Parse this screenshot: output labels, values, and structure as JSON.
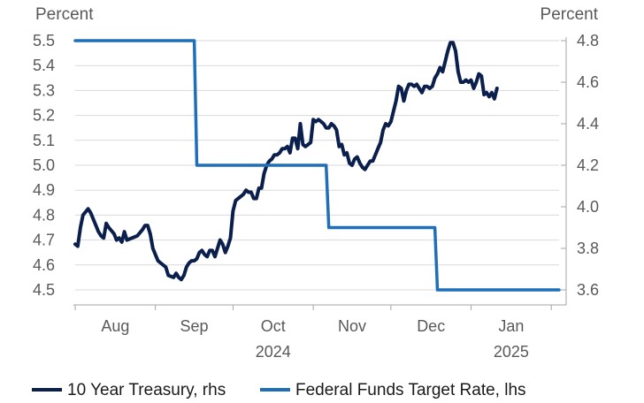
{
  "chart_data": {
    "type": "line",
    "left_axis": {
      "unit_label": "Percent",
      "ylim": [
        4.5,
        5.5
      ],
      "ticks": [
        "5.5",
        "5.4",
        "5.3",
        "5.2",
        "5.1",
        "5.0",
        "4.9",
        "4.8",
        "4.7",
        "4.6",
        "4.5"
      ]
    },
    "right_axis": {
      "unit_label": "Percent",
      "ylim": [
        3.6,
        4.8
      ],
      "ticks": [
        "4.8",
        "4.6",
        "4.4",
        "4.2",
        "4.0",
        "3.8",
        "3.6"
      ]
    },
    "x_axis": {
      "month_labels": [
        "Aug",
        "Sep",
        "Oct",
        "Nov",
        "Dec",
        "Jan"
      ],
      "year_labels": [
        "2024",
        "2025"
      ],
      "xlim_days": [
        0,
        187
      ]
    },
    "series": [
      {
        "name": "10 Year Treasury, rhs",
        "axis": "right",
        "color": "#0b1f4d",
        "points": [
          [
            0,
            3.82
          ],
          [
            1,
            3.81
          ],
          [
            2,
            3.9
          ],
          [
            3,
            3.96
          ],
          [
            5,
            3.99
          ],
          [
            6,
            3.97
          ],
          [
            8,
            3.91
          ],
          [
            9,
            3.88
          ],
          [
            10,
            3.86
          ],
          [
            11,
            3.85
          ],
          [
            12,
            3.92
          ],
          [
            13,
            3.9
          ],
          [
            15,
            3.87
          ],
          [
            16,
            3.84
          ],
          [
            17,
            3.85
          ],
          [
            18,
            3.83
          ],
          [
            19,
            3.88
          ],
          [
            20,
            3.84
          ],
          [
            22,
            3.85
          ],
          [
            24,
            3.86
          ],
          [
            26,
            3.89
          ],
          [
            27,
            3.91
          ],
          [
            28,
            3.91
          ],
          [
            29,
            3.87
          ],
          [
            30,
            3.8
          ],
          [
            31,
            3.77
          ],
          [
            32,
            3.74
          ],
          [
            33,
            3.73
          ],
          [
            35,
            3.71
          ],
          [
            36,
            3.67
          ],
          [
            38,
            3.66
          ],
          [
            39,
            3.68
          ],
          [
            40,
            3.66
          ],
          [
            41,
            3.65
          ],
          [
            42,
            3.67
          ],
          [
            43,
            3.71
          ],
          [
            44,
            3.73
          ],
          [
            45,
            3.74
          ],
          [
            46,
            3.74
          ],
          [
            47,
            3.75
          ],
          [
            48,
            3.78
          ],
          [
            49,
            3.79
          ],
          [
            50,
            3.77
          ],
          [
            51,
            3.76
          ],
          [
            52,
            3.79
          ],
          [
            53,
            3.79
          ],
          [
            54,
            3.76
          ],
          [
            55,
            3.8
          ],
          [
            56,
            3.84
          ],
          [
            57,
            3.82
          ],
          [
            58,
            3.78
          ],
          [
            59,
            3.81
          ],
          [
            60,
            3.85
          ],
          [
            61,
            3.98
          ],
          [
            62,
            4.03
          ],
          [
            63,
            4.04
          ],
          [
            65,
            4.06
          ],
          [
            66,
            4.08
          ],
          [
            67,
            4.07
          ],
          [
            68,
            4.07
          ],
          [
            69,
            4.04
          ],
          [
            70,
            4.04
          ],
          [
            71,
            4.09
          ],
          [
            72,
            4.09
          ],
          [
            73,
            4.16
          ],
          [
            74,
            4.2
          ],
          [
            75,
            4.22
          ],
          [
            76,
            4.23
          ],
          [
            77,
            4.25
          ],
          [
            78,
            4.25
          ],
          [
            79,
            4.26
          ],
          [
            80,
            4.28
          ],
          [
            81,
            4.28
          ],
          [
            82,
            4.29
          ],
          [
            83,
            4.26
          ],
          [
            84,
            4.33
          ],
          [
            85,
            4.33
          ],
          [
            86,
            4.28
          ],
          [
            87,
            4.4
          ],
          [
            88,
            4.3
          ],
          [
            89,
            4.29
          ],
          [
            90,
            4.3
          ],
          [
            91,
            4.31
          ],
          [
            92,
            4.42
          ],
          [
            93,
            4.41
          ],
          [
            94,
            4.42
          ],
          [
            95,
            4.41
          ],
          [
            96,
            4.4
          ],
          [
            97,
            4.38
          ],
          [
            98,
            4.38
          ],
          [
            99,
            4.4
          ],
          [
            100,
            4.39
          ],
          [
            101,
            4.37
          ],
          [
            102,
            4.29
          ],
          [
            103,
            4.3
          ],
          [
            104,
            4.25
          ],
          [
            105,
            4.26
          ],
          [
            106,
            4.21
          ],
          [
            107,
            4.2
          ],
          [
            108,
            4.23
          ],
          [
            109,
            4.24
          ],
          [
            110,
            4.21
          ],
          [
            111,
            4.19
          ],
          [
            112,
            4.18
          ],
          [
            113,
            4.2
          ],
          [
            114,
            4.22
          ],
          [
            115,
            4.22
          ],
          [
            116,
            4.25
          ],
          [
            117,
            4.28
          ],
          [
            118,
            4.31
          ],
          [
            119,
            4.37
          ],
          [
            120,
            4.4
          ],
          [
            121,
            4.39
          ],
          [
            122,
            4.41
          ],
          [
            123,
            4.46
          ],
          [
            124,
            4.51
          ],
          [
            125,
            4.58
          ],
          [
            126,
            4.57
          ],
          [
            127,
            4.51
          ],
          [
            128,
            4.56
          ],
          [
            129,
            4.59
          ],
          [
            130,
            4.59
          ],
          [
            131,
            4.58
          ],
          [
            132,
            4.59
          ],
          [
            133,
            4.57
          ],
          [
            134,
            4.55
          ],
          [
            135,
            4.58
          ],
          [
            136,
            4.58
          ],
          [
            137,
            4.57
          ],
          [
            138,
            4.58
          ],
          [
            139,
            4.62
          ],
          [
            140,
            4.64
          ],
          [
            141,
            4.67
          ],
          [
            142,
            4.65
          ],
          [
            143,
            4.7
          ],
          [
            144,
            4.75
          ],
          [
            145,
            4.79
          ],
          [
            146,
            4.79
          ],
          [
            147,
            4.75
          ],
          [
            148,
            4.65
          ],
          [
            149,
            4.6
          ],
          [
            150,
            4.6
          ],
          [
            151,
            4.61
          ],
          [
            152,
            4.6
          ],
          [
            153,
            4.61
          ],
          [
            154,
            4.57
          ],
          [
            155,
            4.6
          ],
          [
            156,
            4.64
          ],
          [
            157,
            4.63
          ],
          [
            158,
            4.54
          ],
          [
            159,
            4.55
          ],
          [
            160,
            4.53
          ],
          [
            161,
            4.55
          ],
          [
            162,
            4.52
          ],
          [
            163,
            4.57
          ]
        ]
      },
      {
        "name": "Federal Funds Target Rate, lhs",
        "axis": "left",
        "color": "#1f6fb8",
        "points": [
          [
            0,
            5.5
          ],
          [
            46,
            5.5
          ],
          [
            47,
            5.0
          ],
          [
            97,
            5.0
          ],
          [
            98,
            4.75
          ],
          [
            139,
            4.75
          ],
          [
            140,
            4.5
          ],
          [
            187,
            4.5
          ]
        ]
      }
    ],
    "legend": {
      "placement": "bottom-left",
      "entries": [
        "10 Year Treasury, rhs",
        "Federal Funds Target Rate, lhs"
      ]
    }
  }
}
